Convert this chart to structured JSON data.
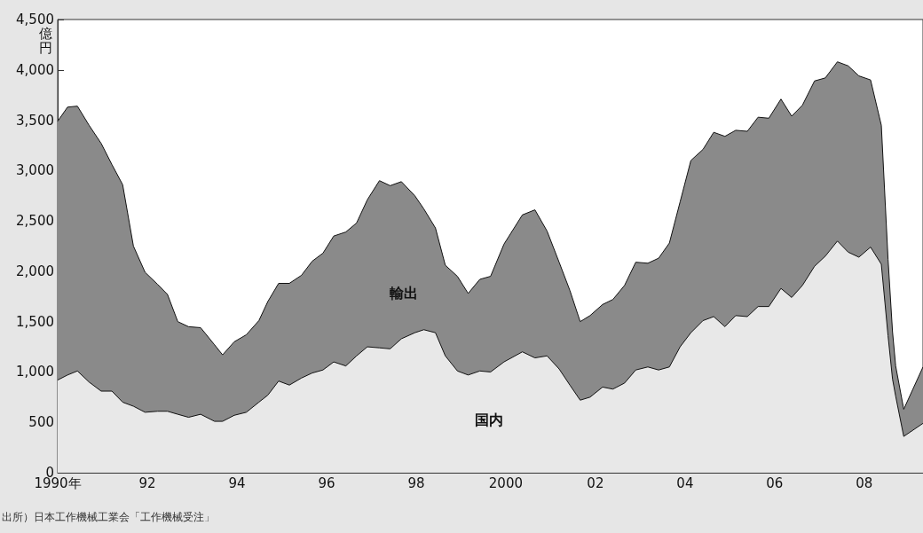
{
  "chart_data": {
    "type": "area",
    "stacked": true,
    "ylabel": "億円",
    "annotations": [
      "出所）日本工作機械工業会「工作機械受注」"
    ],
    "x": [
      1990.0,
      1990.22,
      1990.44,
      1990.7,
      1990.97,
      1991.21,
      1991.45,
      1991.69,
      1991.95,
      1992.23,
      1992.45,
      1992.68,
      1992.92,
      1993.19,
      1993.5,
      1993.68,
      1993.94,
      1994.21,
      1994.49,
      1994.69,
      1994.93,
      1995.17,
      1995.44,
      1995.68,
      1995.92,
      1996.16,
      1996.43,
      1996.67,
      1996.91,
      1997.18,
      1997.42,
      1997.67,
      1997.97,
      1998.17,
      1998.43,
      1998.65,
      1998.92,
      1999.16,
      1999.42,
      1999.66,
      1999.96,
      2000.37,
      2000.65,
      2000.92,
      2001.19,
      2001.43,
      2001.66,
      2001.88,
      2002.16,
      2002.39,
      2002.65,
      2002.9,
      2003.17,
      2003.41,
      2003.65,
      2003.89,
      2004.13,
      2004.4,
      2004.64,
      2004.89,
      2005.13,
      2005.39,
      2005.63,
      2005.87,
      2006.14,
      2006.38,
      2006.62,
      2006.89,
      2007.13,
      2007.4,
      2007.64,
      2007.88,
      2008.14,
      2008.38,
      2008.53,
      2008.63,
      2008.7,
      2008.88,
      2009.31
    ],
    "series": [
      {
        "name": "国内",
        "color": "#e8e8e8",
        "values": [
          920,
          970,
          1010,
          900,
          810,
          810,
          700,
          660,
          600,
          610,
          610,
          580,
          550,
          580,
          510,
          510,
          570,
          600,
          700,
          770,
          910,
          870,
          940,
          990,
          1020,
          1100,
          1060,
          1160,
          1250,
          1240,
          1230,
          1330,
          1390,
          1420,
          1390,
          1160,
          1010,
          970,
          1010,
          1000,
          1100,
          1200,
          1140,
          1160,
          1030,
          870,
          720,
          750,
          850,
          830,
          890,
          1020,
          1050,
          1020,
          1050,
          1250,
          1390,
          1510,
          1550,
          1450,
          1560,
          1550,
          1650,
          1650,
          1830,
          1740,
          1860,
          2050,
          2150,
          2300,
          2190,
          2140,
          2240,
          2070,
          1360,
          930,
          760,
          360,
          490
        ]
      },
      {
        "name": "輸出",
        "color": "#8a8a8a",
        "values": [
          2570,
          2660,
          2630,
          2550,
          2460,
          2250,
          2160,
          1590,
          1390,
          1260,
          1160,
          920,
          900,
          860,
          760,
          660,
          730,
          770,
          810,
          930,
          970,
          1010,
          1020,
          1110,
          1160,
          1250,
          1330,
          1320,
          1460,
          1660,
          1620,
          1560,
          1360,
          1200,
          1040,
          900,
          940,
          810,
          910,
          950,
          1170,
          1360,
          1470,
          1240,
          1060,
          940,
          780,
          810,
          820,
          890,
          970,
          1070,
          1030,
          1110,
          1230,
          1440,
          1710,
          1700,
          1830,
          1890,
          1840,
          1840,
          1880,
          1870,
          1880,
          1800,
          1790,
          1840,
          1770,
          1780,
          1850,
          1800,
          1660,
          1380,
          760,
          470,
          300,
          270,
          560
        ]
      }
    ],
    "xlim": [
      1990,
      2009.31
    ],
    "xticks": [
      {
        "value": 1990,
        "label": "1990年"
      },
      {
        "value": 1991,
        "label": null
      },
      {
        "value": 1992,
        "label": "92"
      },
      {
        "value": 1993,
        "label": null
      },
      {
        "value": 1994,
        "label": "94"
      },
      {
        "value": 1995,
        "label": null
      },
      {
        "value": 1996,
        "label": "96"
      },
      {
        "value": 1997,
        "label": null
      },
      {
        "value": 1998,
        "label": "98"
      },
      {
        "value": 1999,
        "label": null
      },
      2000,
      {
        "value": 2001,
        "label": null
      },
      {
        "value": 2002,
        "label": "02"
      },
      {
        "value": 2003,
        "label": null
      },
      {
        "value": 2004,
        "label": "04"
      },
      {
        "value": 2005,
        "label": null
      },
      {
        "value": 2006,
        "label": "06"
      },
      {
        "value": 2007,
        "label": null
      },
      {
        "value": 2008,
        "label": "08"
      },
      {
        "value": 2009,
        "label": null
      }
    ],
    "ylim": [
      0,
      4500
    ],
    "yticks": [
      0,
      {
        "value": 500,
        "label": "500"
      },
      {
        "value": 1000,
        "label": "1,000"
      },
      {
        "value": 1500,
        "label": "1,500"
      },
      {
        "value": 2000,
        "label": "2,000"
      },
      {
        "value": 2500,
        "label": "2,500"
      },
      {
        "value": 3000,
        "label": "3,000"
      },
      {
        "value": 3500,
        "label": "3,500"
      },
      {
        "value": 4000,
        "label": "4,000"
      },
      {
        "value": 4500,
        "label": "4,500"
      }
    ]
  }
}
